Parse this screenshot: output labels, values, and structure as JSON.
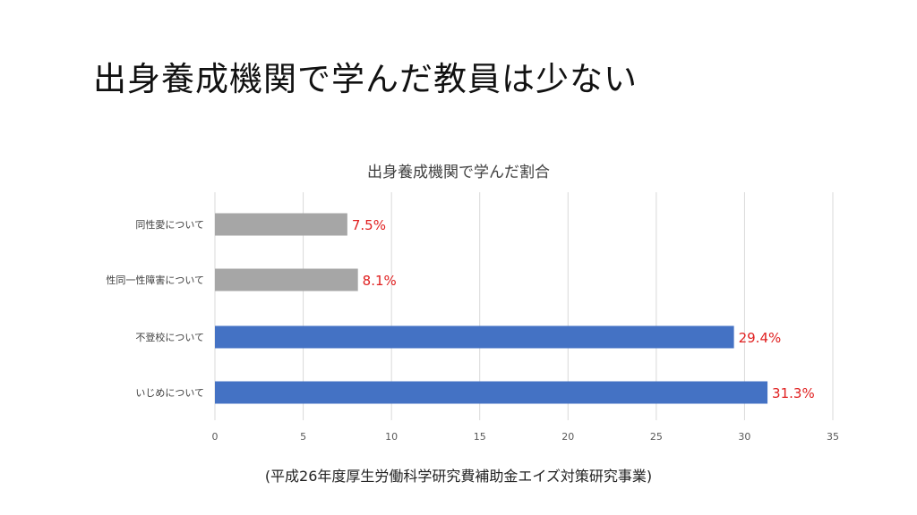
{
  "slide": {
    "title": "出身養成機関で学んだ教員は少ない",
    "source_note": "(平成26年度厚生労働科学研究費補助金エイズ対策研究事業)"
  },
  "chart_data": {
    "type": "bar",
    "orientation": "horizontal",
    "title": "出身養成機関で学んだ割合",
    "categories": [
      "同性愛について",
      "性同一性障害について",
      "不登校について",
      "いじめについて"
    ],
    "values": [
      7.5,
      8.1,
      29.4,
      31.3
    ],
    "data_labels": [
      "7.5%",
      "8.1%",
      "29.4%",
      "31.3%"
    ],
    "bar_colors": [
      "#a6a6a6",
      "#a6a6a6",
      "#4472c4",
      "#4472c4"
    ],
    "data_label_color": "#e02020",
    "x_ticks": [
      0,
      5,
      10,
      15,
      20,
      25,
      30,
      35
    ],
    "xlim": [
      0,
      35
    ],
    "grid": "vertical",
    "legend": "none"
  }
}
